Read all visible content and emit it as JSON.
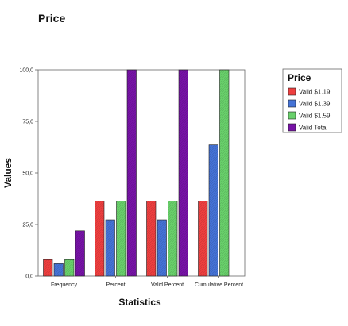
{
  "chart_data": {
    "type": "bar",
    "title": "Price",
    "xlabel": "Statistics",
    "ylabel": "Values",
    "categories": [
      "Frequency",
      "Percent",
      "Valid Percent",
      "Cumulative Percent"
    ],
    "series": [
      {
        "name": "Valid $1.19",
        "color": "#ee3f3f",
        "values": [
          8,
          36.4,
          36.4,
          36.4
        ]
      },
      {
        "name": "Valid $1.39",
        "color": "#4573d6",
        "values": [
          6,
          27.3,
          27.3,
          63.6
        ]
      },
      {
        "name": "Valid $1.59",
        "color": "#69d06b",
        "values": [
          8,
          36.4,
          36.4,
          100
        ]
      },
      {
        "name": "Valid Tota",
        "color": "#7713a6",
        "values": [
          22,
          100,
          100,
          null
        ]
      }
    ],
    "ylim": [
      0,
      100
    ],
    "yticks": [
      "0,0",
      "25,0",
      "50,0",
      "75,0",
      "100,0"
    ],
    "grid": false,
    "legend_title": "Price",
    "legend_position": "right"
  }
}
